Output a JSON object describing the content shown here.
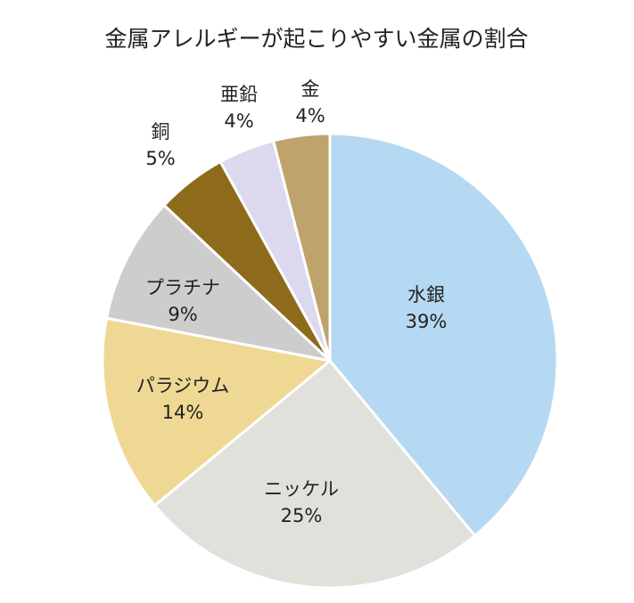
{
  "chart_data": {
    "type": "pie",
    "title": "金属アレルギーが起こりやすい金属の割合",
    "start": "top",
    "direction": "clockwise",
    "slices": [
      {
        "id": "mercury",
        "label": "水銀",
        "value": 39,
        "value_label": "39%",
        "color": "#b5d9f2"
      },
      {
        "id": "nickel",
        "label": "ニッケル",
        "value": 25,
        "value_label": "25%",
        "color": "#e1e1dc"
      },
      {
        "id": "palladium",
        "label": "パラジウム",
        "value": 14,
        "value_label": "14%",
        "color": "#efd893"
      },
      {
        "id": "platinum",
        "label": "プラチナ",
        "value": 9,
        "value_label": "9%",
        "color": "#cdcdcd"
      },
      {
        "id": "copper",
        "label": "銅",
        "value": 5,
        "value_label": "5%",
        "color": "#8e6b1b"
      },
      {
        "id": "zinc",
        "label": "亜鉛",
        "value": 4,
        "value_label": "4%",
        "color": "#dcd8ee"
      },
      {
        "id": "gold",
        "label": "金",
        "value": 4,
        "value_label": "4%",
        "color": "#bea46c"
      }
    ]
  }
}
